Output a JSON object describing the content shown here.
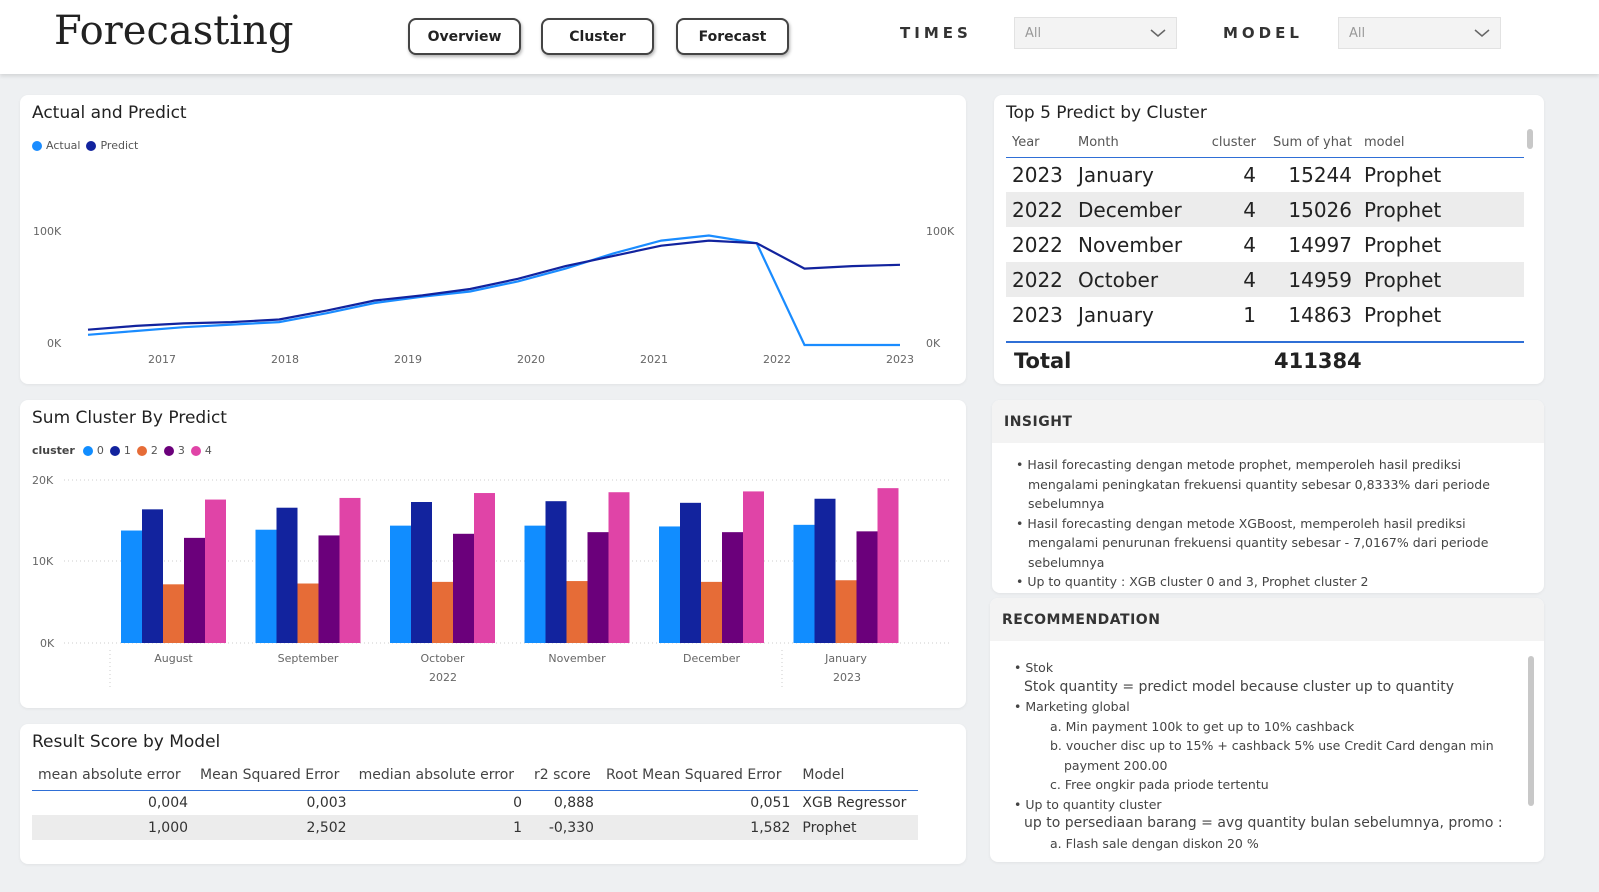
{
  "header": {
    "title": "Forecasting",
    "nav": [
      "Overview",
      "Cluster",
      "Forecast"
    ],
    "filters": [
      {
        "label": "TIMES",
        "value": "All"
      },
      {
        "label": "MODEL",
        "value": "All"
      }
    ]
  },
  "actual_predict": {
    "title": "Actual and Predict",
    "legend": [
      {
        "name": "Actual",
        "color": "#1a8cff"
      },
      {
        "name": "Predict",
        "color": "#12239e"
      }
    ],
    "y_ticks_left": [
      "100K",
      "0K"
    ],
    "y_ticks_right": [
      "100K",
      "0K"
    ]
  },
  "sum_cluster": {
    "title": "Sum Cluster By Predict",
    "legend_title": "cluster",
    "legend": [
      {
        "name": "0",
        "color": "#118dff"
      },
      {
        "name": "1",
        "color": "#12239e"
      },
      {
        "name": "2",
        "color": "#e66c37"
      },
      {
        "name": "3",
        "color": "#6b007b"
      },
      {
        "name": "4",
        "color": "#e044a7"
      }
    ],
    "y_ticks": [
      "20K",
      "10K",
      "0K"
    ],
    "year_labels": [
      "2022",
      "2023"
    ]
  },
  "top5": {
    "title": "Top 5 Predict by Cluster",
    "columns": [
      "Year",
      "Month",
      "cluster",
      "Sum of yhat",
      "model"
    ],
    "rows": [
      [
        "2023",
        "January",
        "4",
        "15244",
        "Prophet"
      ],
      [
        "2022",
        "December",
        "4",
        "15026",
        "Prophet"
      ],
      [
        "2022",
        "November",
        "4",
        "14997",
        "Prophet"
      ],
      [
        "2022",
        "October",
        "4",
        "14959",
        "Prophet"
      ],
      [
        "2023",
        "January",
        "1",
        "14863",
        "Prophet"
      ]
    ],
    "total_label": "Total",
    "total_value": "411384"
  },
  "score": {
    "title": "Result Score by Model",
    "columns": [
      "mean absolute error",
      "Mean Squared Error",
      "median absolute error",
      "r2 score",
      "Root Mean Squared Error",
      "Model"
    ],
    "rows": [
      [
        "0,004",
        "0,003",
        "0",
        "0,888",
        "0,051",
        "XGB Regressor"
      ],
      [
        "1,000",
        "2,502",
        "1",
        "-0,330",
        "1,582",
        "Prophet"
      ]
    ]
  },
  "insight": {
    "title": "INSIGHT",
    "items": [
      "• Hasil forecasting dengan metode prophet, memperoleh hasil prediksi mengalami peningkatan frekuensi quantity sebesar 0,8333% dari periode sebelumnya",
      "• Hasil forecasting dengan metode XGBoost, memperoleh hasil prediksi mengalami penurunan frekuensi quantity sebesar - 7,0167% dari periode sebelumnya",
      "• Up to quantity : XGB cluster 0 and 3,  Prophet cluster 2"
    ]
  },
  "recommendation": {
    "title": "RECOMMENDATION",
    "lines": [
      {
        "kind": "bullet",
        "text": "• Stok"
      },
      {
        "kind": "plain",
        "text": "Stok quantity = predict model because cluster up to quantity"
      },
      {
        "kind": "bullet",
        "text": "•  Marketing global"
      },
      {
        "kind": "sub",
        "text": "a. Min payment 100k to get up to 10% cashback"
      },
      {
        "kind": "sub",
        "text": "b. voucher disc up to 15% + cashback 5% use Credit Card dengan min payment 200.00"
      },
      {
        "kind": "sub",
        "text": "c. Free ongkir pada priode tertentu"
      },
      {
        "kind": "bullet",
        "text": "• Up to quantity cluster"
      },
      {
        "kind": "plain",
        "text": "up to persediaan barang = avg quantity bulan sebelumnya, promo :"
      },
      {
        "kind": "sub",
        "text": "a.  Flash sale dengan diskon 20 %"
      }
    ]
  },
  "chart_data": [
    {
      "type": "line",
      "title": "Actual and Predict",
      "x": [
        "2016-08",
        "2017-01",
        "2017-06",
        "2017-12",
        "2018-06",
        "2018-12",
        "2019-06",
        "2019-12",
        "2020-06",
        "2020-12",
        "2021-06",
        "2021-12",
        "2022-03",
        "2022-06",
        "2022-08",
        "2022-10",
        "2022-12",
        "2023-01"
      ],
      "x_ticks": [
        "2017",
        "2018",
        "2019",
        "2020",
        "2021",
        "2022",
        "2023"
      ],
      "series": [
        {
          "name": "Actual",
          "values": [
            8000,
            11000,
            14000,
            16000,
            18000,
            25000,
            33000,
            38000,
            42000,
            50000,
            60000,
            72000,
            82000,
            86000,
            80000,
            0,
            0,
            0
          ]
        },
        {
          "name": "Predict",
          "values": [
            12000,
            15000,
            17000,
            18000,
            20000,
            27000,
            35000,
            39000,
            44000,
            52000,
            62000,
            70000,
            78000,
            82000,
            80000,
            60000,
            62000,
            63000
          ]
        }
      ],
      "ylim": [
        0,
        110000
      ],
      "y_ticks": [
        "0K",
        "100K"
      ]
    },
    {
      "type": "bar",
      "title": "Sum Cluster By Predict",
      "categories": [
        "August",
        "September",
        "October",
        "November",
        "December",
        "January"
      ],
      "series": [
        {
          "name": "0",
          "values": [
            13800,
            13900,
            14400,
            14400,
            14300,
            14500
          ]
        },
        {
          "name": "1",
          "values": [
            16400,
            16600,
            17300,
            17400,
            17200,
            17700
          ]
        },
        {
          "name": "2",
          "values": [
            7200,
            7300,
            7500,
            7600,
            7500,
            7700
          ]
        },
        {
          "name": "3",
          "values": [
            12900,
            13200,
            13400,
            13600,
            13600,
            13700
          ]
        },
        {
          "name": "4",
          "values": [
            17600,
            17800,
            18400,
            18500,
            18600,
            19000
          ]
        }
      ],
      "ylim": [
        0,
        20000
      ],
      "y_ticks": [
        "0K",
        "10K",
        "20K"
      ]
    }
  ]
}
